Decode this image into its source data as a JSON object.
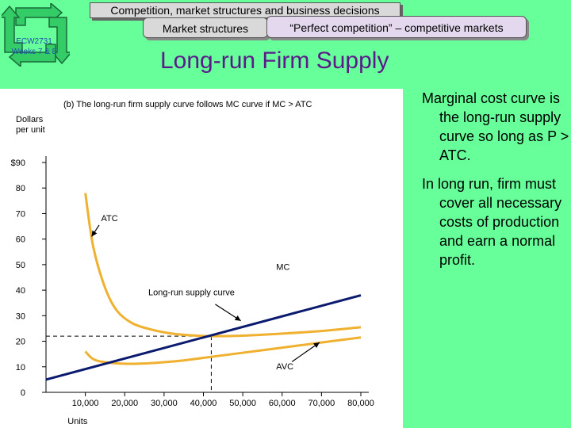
{
  "header": {
    "course_code_line1": "ECW2731",
    "course_code_line2": "Weeks 7 & 8",
    "main_topic": "Competition, market structures and business decisions",
    "tab_market_structures": "Market structures",
    "tab_perfect_competition": "“Perfect competition” – competitive markets"
  },
  "slide": {
    "title": "Long-run Firm Supply"
  },
  "notes": [
    "Marginal cost curve is the long-run supply curve so long as P > ATC.",
    "In long run, firm must cover all necessary costs of production and earn a normal profit."
  ],
  "colors": {
    "background": "#66ff99",
    "title": "#5b1a8a",
    "cost_curves": "#f0b030",
    "mc_line": "#0a1a6e"
  },
  "chart_data": {
    "type": "line",
    "title": "(b) The long-run firm supply curve follows MC curve if MC > ATC",
    "ylabel": "Dollars per unit",
    "xlabel": "Units",
    "xlim": [
      0,
      80000
    ],
    "ylim": [
      0,
      90
    ],
    "x_ticks": [
      10000,
      20000,
      30000,
      40000,
      50000,
      60000,
      70000,
      80000
    ],
    "x_tick_labels": [
      "10,000",
      "20,000",
      "30,000",
      "40,000",
      "50,000",
      "60,000",
      "70,000",
      "80,000"
    ],
    "y_ticks": [
      0,
      10,
      20,
      30,
      40,
      50,
      60,
      70,
      80,
      90
    ],
    "y_tick_labels": [
      "0",
      "10",
      "20",
      "30",
      "40",
      "50",
      "60",
      "70",
      "80",
      "$90"
    ],
    "series": [
      {
        "name": "ATC",
        "x": [
          10000,
          12000,
          15000,
          18000,
          22000,
          27000,
          32000,
          37000,
          42000,
          50000,
          60000,
          70000,
          80000
        ],
        "y": [
          78,
          57,
          41,
          32,
          27,
          24.5,
          23,
          22.3,
          22,
          22.2,
          23,
          24,
          25.5
        ]
      },
      {
        "name": "AVC",
        "x": [
          10000,
          12000,
          15000,
          20000,
          25000,
          30000,
          35000,
          40000,
          50000,
          60000,
          70000,
          80000
        ],
        "y": [
          16,
          13,
          11.8,
          11.2,
          11.3,
          11.8,
          12.5,
          13.5,
          15.5,
          17.5,
          19.5,
          21.5
        ]
      },
      {
        "name": "MC",
        "x": [
          0,
          80000
        ],
        "y": [
          5,
          38
        ]
      }
    ],
    "annotations": [
      {
        "text": "ATC",
        "target": "ATC"
      },
      {
        "text": "MC",
        "target": "MC"
      },
      {
        "text": "AVC",
        "target": "AVC"
      },
      {
        "text": "Long-run supply curve",
        "target": "MC"
      }
    ],
    "reference_point": {
      "x": 42000,
      "y": 22
    }
  }
}
